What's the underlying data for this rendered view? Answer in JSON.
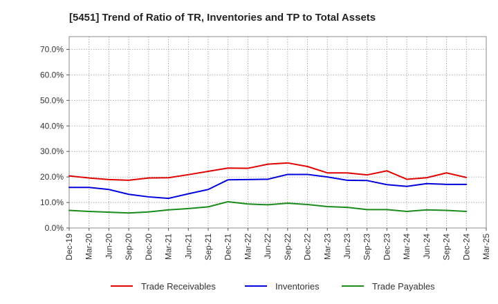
{
  "chart_data": {
    "type": "line",
    "title": "[5451]  Trend of Ratio of TR, Inventories and TP to Total Assets",
    "xlabel": "",
    "ylabel": "",
    "ylim": [
      0,
      75
    ],
    "yticks": [
      0,
      10,
      20,
      30,
      40,
      50,
      60,
      70
    ],
    "ytick_labels": [
      "0.0%",
      "10.0%",
      "20.0%",
      "30.0%",
      "40.0%",
      "50.0%",
      "60.0%",
      "70.0%"
    ],
    "grid": true,
    "legend_position": "bottom",
    "xtick_labels": [
      "Dec-19",
      "Mar-20",
      "Jun-20",
      "Sep-20",
      "Dec-20",
      "Mar-21",
      "Jun-21",
      "Sep-21",
      "Dec-21",
      "Mar-22",
      "Jun-22",
      "Sep-22",
      "Dec-22",
      "Mar-23",
      "Jun-23",
      "Sep-23",
      "Dec-23",
      "Mar-24",
      "Jun-24",
      "Sep-24",
      "Dec-24",
      "Mar-25"
    ],
    "x": [
      "Dec-19",
      "Mar-20",
      "Jun-20",
      "Sep-20",
      "Dec-20",
      "Mar-21",
      "Jun-21",
      "Sep-21",
      "Dec-21",
      "Mar-22",
      "Jun-22",
      "Sep-22",
      "Dec-22",
      "Mar-23",
      "Jun-23",
      "Sep-23",
      "Dec-23",
      "Mar-24",
      "Jun-24",
      "Sep-24",
      "Dec-24"
    ],
    "series": [
      {
        "name": "Trade Receivables",
        "color": "#e00000",
        "values": [
          20.4,
          19.6,
          19.0,
          18.7,
          19.6,
          19.7,
          20.9,
          22.2,
          23.5,
          23.4,
          25.0,
          25.5,
          24.1,
          21.6,
          21.6,
          20.8,
          22.4,
          19.1,
          19.7,
          21.6,
          19.8
        ]
      },
      {
        "name": "Inventories",
        "color": "#0000dd",
        "values": [
          15.9,
          15.9,
          15.1,
          13.2,
          12.2,
          11.6,
          13.4,
          15.1,
          18.9,
          19.0,
          19.1,
          21.0,
          21.0,
          20.0,
          18.7,
          18.6,
          17.0,
          16.3,
          17.4,
          17.1,
          17.1
        ]
      },
      {
        "name": "Trade Payables",
        "color": "#1a8a1a",
        "values": [
          6.9,
          6.5,
          6.2,
          5.9,
          6.3,
          7.1,
          7.6,
          8.3,
          10.3,
          9.4,
          9.1,
          9.7,
          9.2,
          8.4,
          8.1,
          7.2,
          7.2,
          6.5,
          7.1,
          6.9,
          6.5
        ]
      }
    ]
  }
}
